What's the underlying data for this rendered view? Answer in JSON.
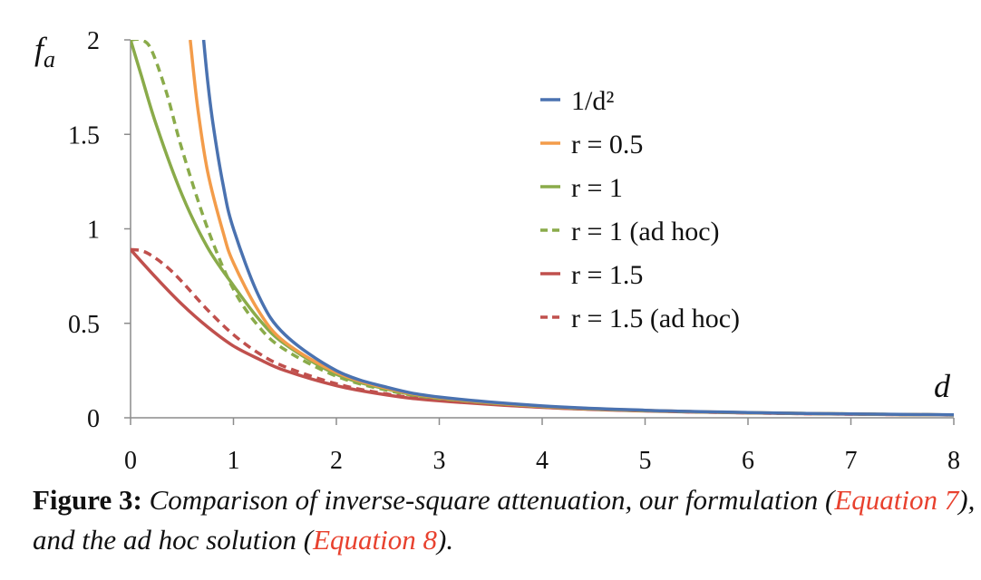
{
  "chart_data": {
    "type": "line",
    "xlabel": "d",
    "ylabel": "f",
    "ylabel_sub": "a",
    "xlim": [
      0,
      8
    ],
    "ylim": [
      0,
      2
    ],
    "xticks": [
      "0",
      "1",
      "2",
      "3",
      "4",
      "5",
      "6",
      "7",
      "8"
    ],
    "yticks": [
      "0",
      "0.5",
      "1",
      "1.5",
      "2"
    ],
    "ytick_values": [
      0,
      0.5,
      1,
      1.5,
      2
    ],
    "legend_position": "top-right",
    "grid": false,
    "series": [
      {
        "name": "1/d²",
        "color": "#4a72b0",
        "dash": "solid",
        "x": [
          0.71,
          0.75,
          0.8,
          0.9,
          1,
          1.25,
          1.5,
          2,
          2.5,
          3,
          4,
          5,
          6,
          7,
          8
        ],
        "y": [
          2.0,
          1.78,
          1.56,
          1.23,
          1.0,
          0.64,
          0.44,
          0.25,
          0.16,
          0.11,
          0.063,
          0.04,
          0.028,
          0.02,
          0.016
        ]
      },
      {
        "name": "r = 0.5",
        "color": "#f39c4a",
        "dash": "solid",
        "x": [
          0.58,
          0.65,
          0.75,
          0.9,
          1,
          1.25,
          1.5,
          2,
          2.5,
          3,
          4,
          5,
          6,
          7,
          8
        ],
        "y": [
          2.0,
          1.65,
          1.3,
          0.98,
          0.82,
          0.56,
          0.4,
          0.24,
          0.155,
          0.107,
          0.061,
          0.039,
          0.027,
          0.02,
          0.015
        ]
      },
      {
        "name": "r = 1",
        "color": "#8aab4a",
        "dash": "solid",
        "x": [
          0,
          0.1,
          0.25,
          0.5,
          0.75,
          1,
          1.25,
          1.5,
          2,
          2.5,
          3,
          4,
          5,
          6,
          7,
          8
        ],
        "y": [
          2.0,
          1.82,
          1.55,
          1.18,
          0.9,
          0.7,
          0.52,
          0.39,
          0.23,
          0.15,
          0.104,
          0.06,
          0.038,
          0.027,
          0.02,
          0.015
        ]
      },
      {
        "name": "r = 1 (ad hoc)",
        "color": "#8aab4a",
        "dash": "dashed",
        "x": [
          0,
          0.1,
          0.2,
          0.35,
          0.5,
          0.75,
          1,
          1.25,
          1.5,
          2,
          2.5,
          3,
          4,
          5,
          6,
          7,
          8
        ],
        "y": [
          2.0,
          2.0,
          1.95,
          1.72,
          1.42,
          1.0,
          0.68,
          0.48,
          0.36,
          0.22,
          0.145,
          0.102,
          0.059,
          0.038,
          0.027,
          0.02,
          0.015
        ]
      },
      {
        "name": "r = 1.5",
        "color": "#c0504d",
        "dash": "solid",
        "x": [
          0,
          0.25,
          0.5,
          0.75,
          1,
          1.25,
          1.5,
          2,
          2.5,
          3,
          4,
          5,
          6,
          7,
          8
        ],
        "y": [
          0.89,
          0.74,
          0.6,
          0.48,
          0.38,
          0.31,
          0.25,
          0.17,
          0.12,
          0.09,
          0.055,
          0.036,
          0.026,
          0.019,
          0.015
        ]
      },
      {
        "name": "r = 1.5 (ad hoc)",
        "color": "#c0504d",
        "dash": "dashed",
        "x": [
          0,
          0.1,
          0.2,
          0.35,
          0.5,
          0.75,
          1,
          1.25,
          1.5,
          2,
          2.5,
          3,
          4,
          5,
          6,
          7,
          8
        ],
        "y": [
          0.89,
          0.885,
          0.86,
          0.8,
          0.72,
          0.57,
          0.44,
          0.34,
          0.27,
          0.18,
          0.125,
          0.093,
          0.056,
          0.037,
          0.026,
          0.019,
          0.015
        ]
      }
    ]
  },
  "caption": {
    "label": "Figure 3:",
    "text_1": " Comparison of inverse-square attenuation, our formulation (",
    "eq7": "Equation 7",
    "text_2": "), and the ad hoc solution (",
    "eq8": "Equation 8",
    "text_3": ")."
  }
}
